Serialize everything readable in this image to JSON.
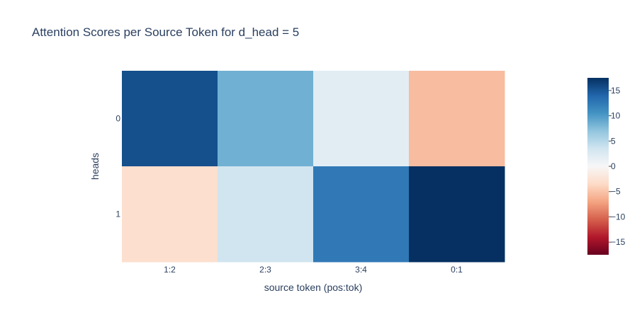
{
  "chart_data": {
    "type": "heatmap",
    "title": "Attention Scores per Source Token for d_head = 5",
    "xlabel": "source token (pos:tok)",
    "ylabel": "heads",
    "x_categories": [
      "1:2",
      "2:3",
      "3:4",
      "0:1"
    ],
    "y_categories": [
      "0",
      "1"
    ],
    "z": [
      [
        15.5,
        8.5,
        2.0,
        -5.5
      ],
      [
        -3.0,
        3.5,
        12.5,
        17.5
      ]
    ],
    "colorscale": "RdBu",
    "zmin": -17.5,
    "zmax": 17.5,
    "colorbar_ticks": [
      "15",
      "10",
      "5",
      "0",
      "−5",
      "−10",
      "−15"
    ],
    "colorbar_tick_values": [
      15,
      10,
      5,
      0,
      -5,
      -10,
      -15
    ]
  }
}
